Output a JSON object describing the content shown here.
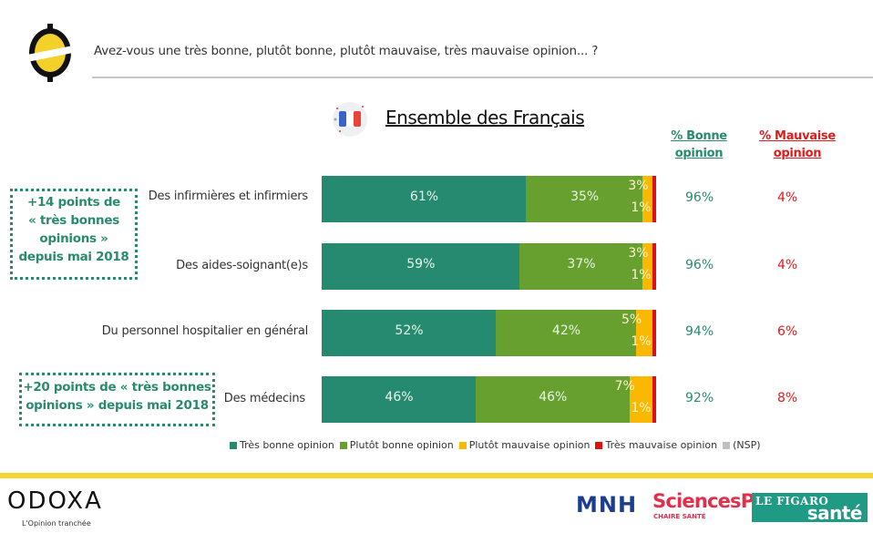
{
  "header": {
    "question": "Avez-vous une très bonne, plutôt bonne, plutôt mauvaise, très mauvaise opinion... ?"
  },
  "section": {
    "flag_icon": "france-flag-icon",
    "title": "Ensemble des Français"
  },
  "columns": {
    "good_line1": "% Bonne",
    "good_line2": "opinion",
    "bad_line1": "% Mauvaise",
    "bad_line2": "opinion"
  },
  "callouts": [
    {
      "lines": [
        "+14 points de",
        "« très bonnes",
        "opinions »",
        "depuis mai 2018"
      ]
    },
    {
      "lines": [
        "+20 points de « très bonnes",
        "opinions » depuis mai 2018"
      ]
    }
  ],
  "chart_data": {
    "type": "bar",
    "orientation": "horizontal-stacked-100",
    "title": "Ensemble des Français",
    "categories": [
      "Des infirmières et infirmiers",
      "Des aides-soignant(e)s",
      "Du personnel hospitalier en général",
      "Des médecins"
    ],
    "series": [
      {
        "name": "Très bonne opinion",
        "color": "#268a70",
        "values": [
          61,
          59,
          52,
          46
        ]
      },
      {
        "name": "Plutôt bonne opinion",
        "color": "#67a02e",
        "values": [
          35,
          37,
          42,
          46
        ]
      },
      {
        "name": "Plutôt mauvaise opinion",
        "color": "#fbb800",
        "values": [
          3,
          3,
          5,
          7
        ]
      },
      {
        "name": "Très mauvaise opinion",
        "color": "#e20f12",
        "values": [
          1,
          1,
          1,
          1
        ]
      },
      {
        "name": "(NSP)",
        "color": "#c0c0c0",
        "values": [
          0,
          0,
          0,
          0
        ]
      }
    ],
    "good_opinion_pct": [
      "96%",
      "96%",
      "94%",
      "92%"
    ],
    "bad_opinion_pct": [
      "4%",
      "4%",
      "6%",
      "8%"
    ],
    "xlim": [
      0,
      100
    ],
    "legend_position": "bottom"
  },
  "footer": {
    "brand": "ODOXA",
    "tagline": "L'Opinion tranchée",
    "partner1": "MNH",
    "partner2": "SciencesPo",
    "partner2_sub": "CHAIRE SANTÉ",
    "partner3_top": "LE FIGARO",
    "partner3_bottom": "santé"
  }
}
